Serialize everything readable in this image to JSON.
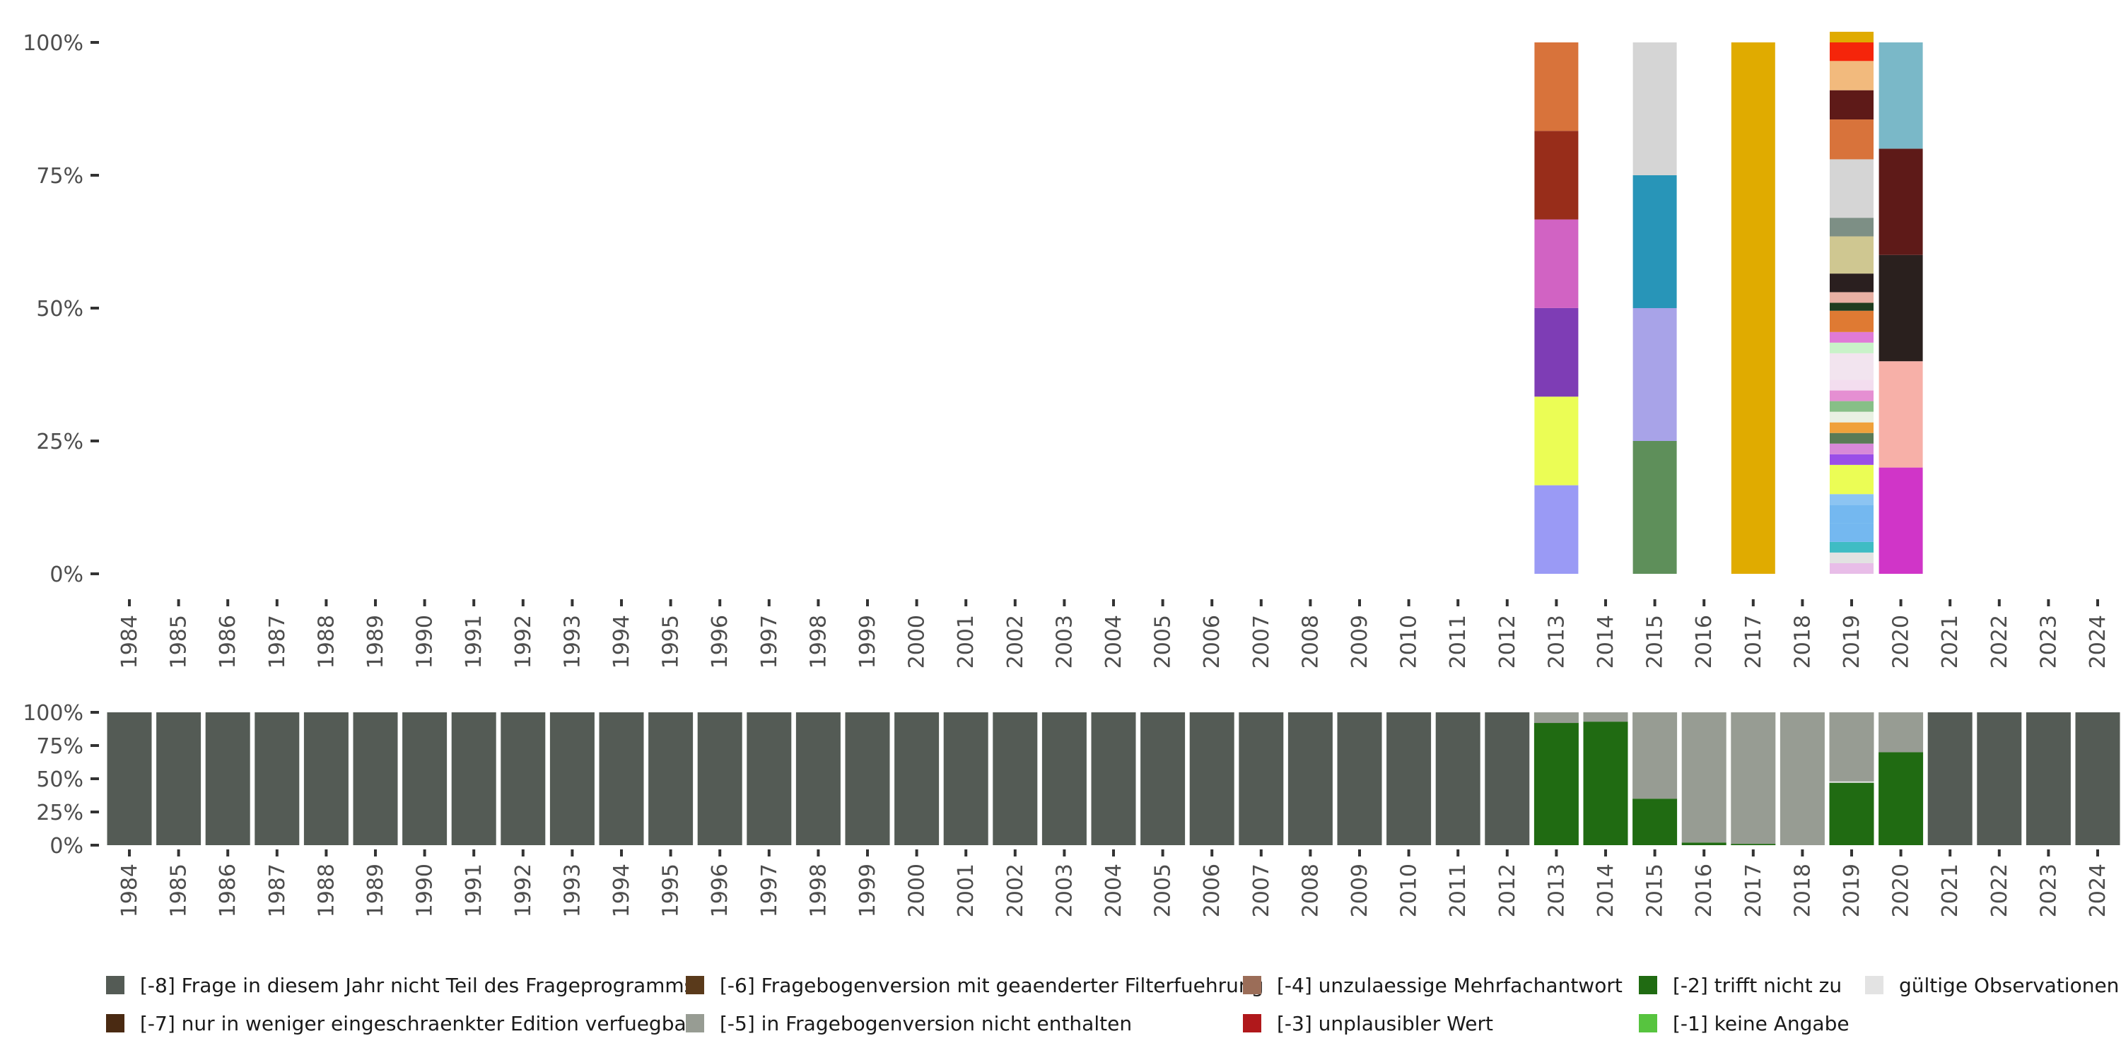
{
  "chart_data": [
    {
      "type": "bar",
      "stacked": true,
      "percent": true,
      "panel": "top",
      "title": "",
      "xlabel": "",
      "ylabel": "",
      "ylim": [
        0,
        100
      ],
      "y_ticks": [
        "0%",
        "25%",
        "50%",
        "75%",
        "100%"
      ],
      "y_tick_values": [
        0,
        25,
        50,
        75,
        100
      ],
      "categories": [
        "1984",
        "1985",
        "1986",
        "1987",
        "1988",
        "1989",
        "1990",
        "1991",
        "1992",
        "1993",
        "1994",
        "1995",
        "1996",
        "1997",
        "1998",
        "1999",
        "2000",
        "2001",
        "2002",
        "2003",
        "2004",
        "2005",
        "2006",
        "2007",
        "2008",
        "2009",
        "2010",
        "2011",
        "2012",
        "2013",
        "2014",
        "2015",
        "2016",
        "2017",
        "2018",
        "2019",
        "2020",
        "2021",
        "2022",
        "2023",
        "2024"
      ],
      "bars": [
        {
          "year": "2013",
          "segments": [
            {
              "value": 16.67,
              "color": "#9a9af5"
            },
            {
              "value": 16.67,
              "color": "#ebfd55"
            },
            {
              "value": 16.67,
              "color": "#7e3db5"
            },
            {
              "value": 16.67,
              "color": "#d163c3"
            },
            {
              "value": 16.67,
              "color": "#982d1a"
            },
            {
              "value": 16.65,
              "color": "#d8733b"
            }
          ]
        },
        {
          "year": "2015",
          "segments": [
            {
              "value": 25,
              "color": "#5e8f5a"
            },
            {
              "value": 25,
              "color": "#a8a3e8"
            },
            {
              "value": 25,
              "color": "#2895b8"
            },
            {
              "value": 25,
              "color": "#d5d5d5"
            }
          ]
        },
        {
          "year": "2017",
          "segments": [
            {
              "value": 100,
              "color": "#e0ab00"
            }
          ]
        },
        {
          "year": "2019",
          "segments": [
            {
              "value": 2,
              "color": "#e8bde8"
            },
            {
              "value": 2,
              "color": "#e2e2e2"
            },
            {
              "value": 2,
              "color": "#3fbcc4"
            },
            {
              "value": 3.5,
              "color": "#74b8f0"
            },
            {
              "value": 3.5,
              "color": "#74b8f0"
            },
            {
              "value": 2,
              "color": "#8cc4f2"
            },
            {
              "value": 5.5,
              "color": "#ebfd55"
            },
            {
              "value": 2,
              "color": "#9a4ee8"
            },
            {
              "value": 2,
              "color": "#d889d8"
            },
            {
              "value": 2,
              "color": "#5b7b56"
            },
            {
              "value": 2,
              "color": "#f0a13a"
            },
            {
              "value": 2,
              "color": "#e9f1e3"
            },
            {
              "value": 2,
              "color": "#87bf87"
            },
            {
              "value": 2,
              "color": "#e58fd2"
            },
            {
              "value": 2,
              "color": "#f3ddef"
            },
            {
              "value": 5,
              "color": "#f2e4ef"
            },
            {
              "value": 2,
              "color": "#c9f2c9"
            },
            {
              "value": 2,
              "color": "#e07ad6"
            },
            {
              "value": 4,
              "color": "#df7a33"
            },
            {
              "value": 1.5,
              "color": "#1f3d1f"
            },
            {
              "value": 2,
              "color": "#e8b0a3"
            },
            {
              "value": 3.5,
              "color": "#2a1f1f"
            },
            {
              "value": 7,
              "color": "#cfc791"
            },
            {
              "value": 3.5,
              "color": "#7d8f85"
            },
            {
              "value": 11,
              "color": "#d5d5d5"
            },
            {
              "value": 7.5,
              "color": "#d8733b"
            },
            {
              "value": 5.5,
              "color": "#5e1a18"
            },
            {
              "value": 5.5,
              "color": "#f2ba7d"
            },
            {
              "value": 3.5,
              "color": "#f5250a"
            },
            {
              "value": 2,
              "color": "#e0ab00"
            }
          ]
        },
        {
          "year": "2020",
          "segments": [
            {
              "value": 20,
              "color": "#d035c8"
            },
            {
              "value": 20,
              "color": "#f7b0a8"
            },
            {
              "value": 20,
              "color": "#2a201e"
            },
            {
              "value": 20,
              "color": "#5e1a18"
            },
            {
              "value": 20,
              "color": "#7ab8c8"
            }
          ]
        }
      ]
    },
    {
      "type": "bar",
      "stacked": true,
      "percent": true,
      "panel": "bottom",
      "title": "",
      "xlabel": "",
      "ylabel": "",
      "ylim": [
        0,
        100
      ],
      "y_ticks": [
        "0%",
        "25%",
        "50%",
        "75%",
        "100%"
      ],
      "y_tick_values": [
        0,
        25,
        50,
        75,
        100
      ],
      "categories": [
        "1984",
        "1985",
        "1986",
        "1987",
        "1988",
        "1989",
        "1990",
        "1991",
        "1992",
        "1993",
        "1994",
        "1995",
        "1996",
        "1997",
        "1998",
        "1999",
        "2000",
        "2001",
        "2002",
        "2003",
        "2004",
        "2005",
        "2006",
        "2007",
        "2008",
        "2009",
        "2010",
        "2011",
        "2012",
        "2013",
        "2014",
        "2015",
        "2016",
        "2017",
        "2018",
        "2019",
        "2020",
        "2021",
        "2022",
        "2023",
        "2024"
      ],
      "series": [
        {
          "name": "[-2] trifft nicht zu",
          "color": "#206b12",
          "values": [
            0,
            0,
            0,
            0,
            0,
            0,
            0,
            0,
            0,
            0,
            0,
            0,
            0,
            0,
            0,
            0,
            0,
            0,
            0,
            0,
            0,
            0,
            0,
            0,
            0,
            0,
            0,
            0,
            0,
            92,
            93,
            35,
            2,
            1,
            0,
            47,
            70,
            0,
            0,
            0,
            0
          ]
        },
        {
          "name": "gültige Observationen",
          "color": "#e3e3e3",
          "values": [
            0,
            0,
            0,
            0,
            0,
            0,
            0,
            0,
            0,
            0,
            0,
            0,
            0,
            0,
            0,
            0,
            0,
            0,
            0,
            0,
            0,
            0,
            0,
            0,
            0,
            0,
            0,
            0,
            0,
            0,
            0,
            0,
            0,
            0,
            0,
            1,
            0,
            0,
            0,
            0,
            0
          ]
        },
        {
          "name": "[-5] in Fragebogenversion nicht enthalten",
          "color": "#979c93",
          "values": [
            0,
            0,
            0,
            0,
            0,
            0,
            0,
            0,
            0,
            0,
            0,
            0,
            0,
            0,
            0,
            0,
            0,
            0,
            0,
            0,
            0,
            0,
            0,
            0,
            0,
            0,
            0,
            0,
            0,
            8,
            7,
            65,
            98,
            99,
            100,
            52,
            30,
            0,
            0,
            0,
            0
          ]
        },
        {
          "name": "[-8] Frage in diesem Jahr nicht Teil des Frageprogramms",
          "color": "#545b55",
          "values": [
            100,
            100,
            100,
            100,
            100,
            100,
            100,
            100,
            100,
            100,
            100,
            100,
            100,
            100,
            100,
            100,
            100,
            100,
            100,
            100,
            100,
            100,
            100,
            100,
            100,
            100,
            100,
            100,
            100,
            0,
            0,
            0,
            0,
            0,
            0,
            0,
            0,
            100,
            100,
            100,
            100
          ]
        }
      ]
    }
  ],
  "legend": [
    {
      "label": "[-8] Frage in diesem Jahr nicht Teil des Frageprogramms",
      "color": "#545b55"
    },
    {
      "label": "[-6] Fragebogenversion mit geaenderter Filterfuehrung",
      "color": "#5a3a1b"
    },
    {
      "label": "[-4] unzulaessige Mehrfachantwort",
      "color": "#9b6d58"
    },
    {
      "label": "[-2] trifft nicht zu",
      "color": "#206b12"
    },
    {
      "label": "gültige Observationen",
      "color": "#e3e3e3"
    },
    {
      "label": "[-7] nur in weniger eingeschraenkter Edition verfuegbar",
      "color": "#4a2a12"
    },
    {
      "label": "[-5] in Fragebogenversion nicht enthalten",
      "color": "#979c93"
    },
    {
      "label": "[-3] unplausibler Wert",
      "color": "#b0181b"
    },
    {
      "label": "[-1] keine Angabe",
      "color": "#57c43f"
    }
  ]
}
